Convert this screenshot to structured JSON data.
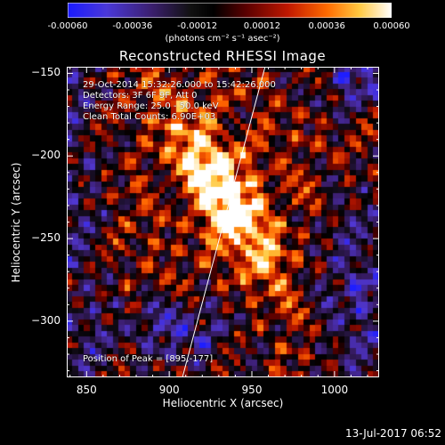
{
  "colorbar": {
    "ticks": [
      "-0.00060",
      "-0.00036",
      "-0.00012",
      "0.00012",
      "0.00036",
      "0.00060"
    ],
    "units": "(photons cm⁻² s⁻¹ asec⁻²)"
  },
  "chart_data": {
    "type": "heatmap",
    "title": "Reconstructed RHESSI Image",
    "xlabel": "Heliocentric X (arcsec)",
    "ylabel": "Heliocentric Y (arcsec)",
    "xlim": [
      838,
      1027
    ],
    "ylim": [
      -334,
      -146
    ],
    "xticks": [
      "850",
      "900",
      "950",
      "1000"
    ],
    "yticks": [
      "−150",
      "−200",
      "−250",
      "−300"
    ],
    "colorscale_range": [
      -0.0006,
      0.0006
    ],
    "colormap": "red-temperature with blue negatives",
    "peak_position": [
      895,
      -177
    ],
    "limb_line": [
      [
        908,
        -334
      ],
      [
        958,
        -146
      ]
    ]
  },
  "info": {
    "time": "29-Oct-2014 15:32:26.000 to 15:42:26.000",
    "detectors": "Detectors: 3F 6F 9F, Att 0",
    "energy": "Energy Range: 25.0 - 50.0 keV",
    "method": "Clean    Total Counts: 6.90E+03",
    "peak": "Position of Peak = [895,-177]"
  },
  "footer": {
    "date": "13-Jul-2017 06:52"
  }
}
